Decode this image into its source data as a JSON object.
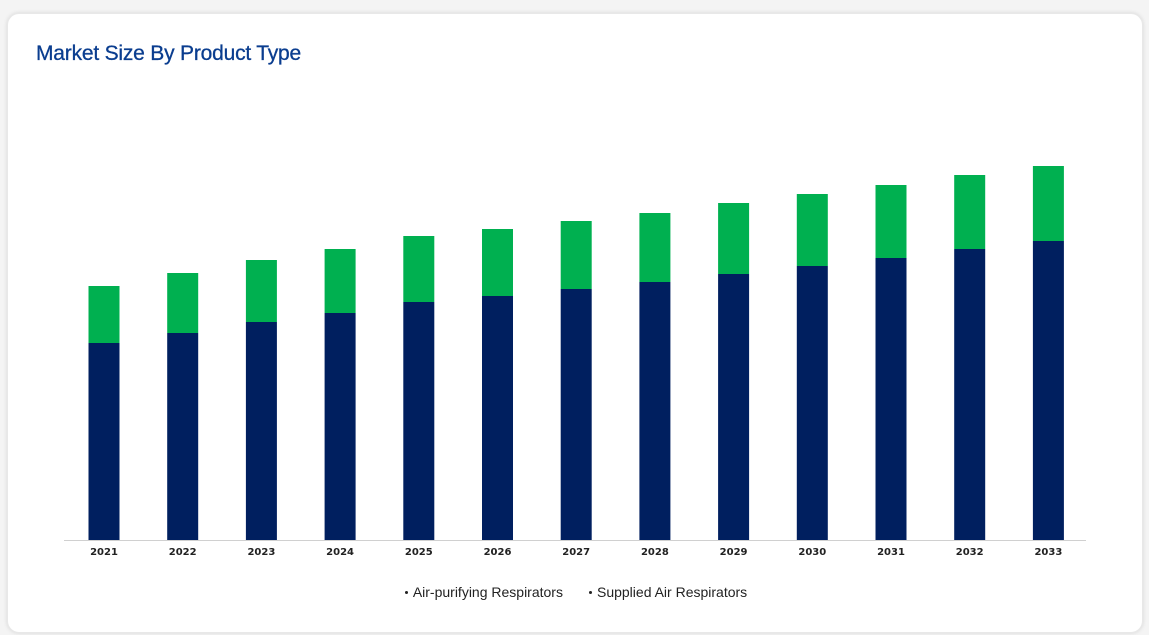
{
  "page": {
    "title": "Market Size By Product Type"
  },
  "chart_data": {
    "type": "bar",
    "stacked": true,
    "title": "Market Size By Product Type",
    "xlabel": "",
    "ylabel": "",
    "y_axis_visible": false,
    "grid": false,
    "legend_position": "bottom",
    "categories": [
      "2021",
      "2022",
      "2023",
      "2024",
      "2025",
      "2026",
      "2027",
      "2028",
      "2029",
      "2030",
      "2031",
      "2032",
      "2033"
    ],
    "ylim": [
      0,
      400
    ],
    "series": [
      {
        "name": "Air-purifying Respirators",
        "color": "#001f5f",
        "values": [
          197,
          207,
          218,
          227,
          238,
          244,
          251,
          258,
          266,
          274,
          282,
          291,
          299
        ]
      },
      {
        "name": "Supplied Air Respirators",
        "color": "#00b050",
        "values": [
          57,
          60,
          62,
          64,
          66,
          67,
          68,
          69,
          71,
          72,
          73,
          74,
          75
        ]
      }
    ]
  }
}
